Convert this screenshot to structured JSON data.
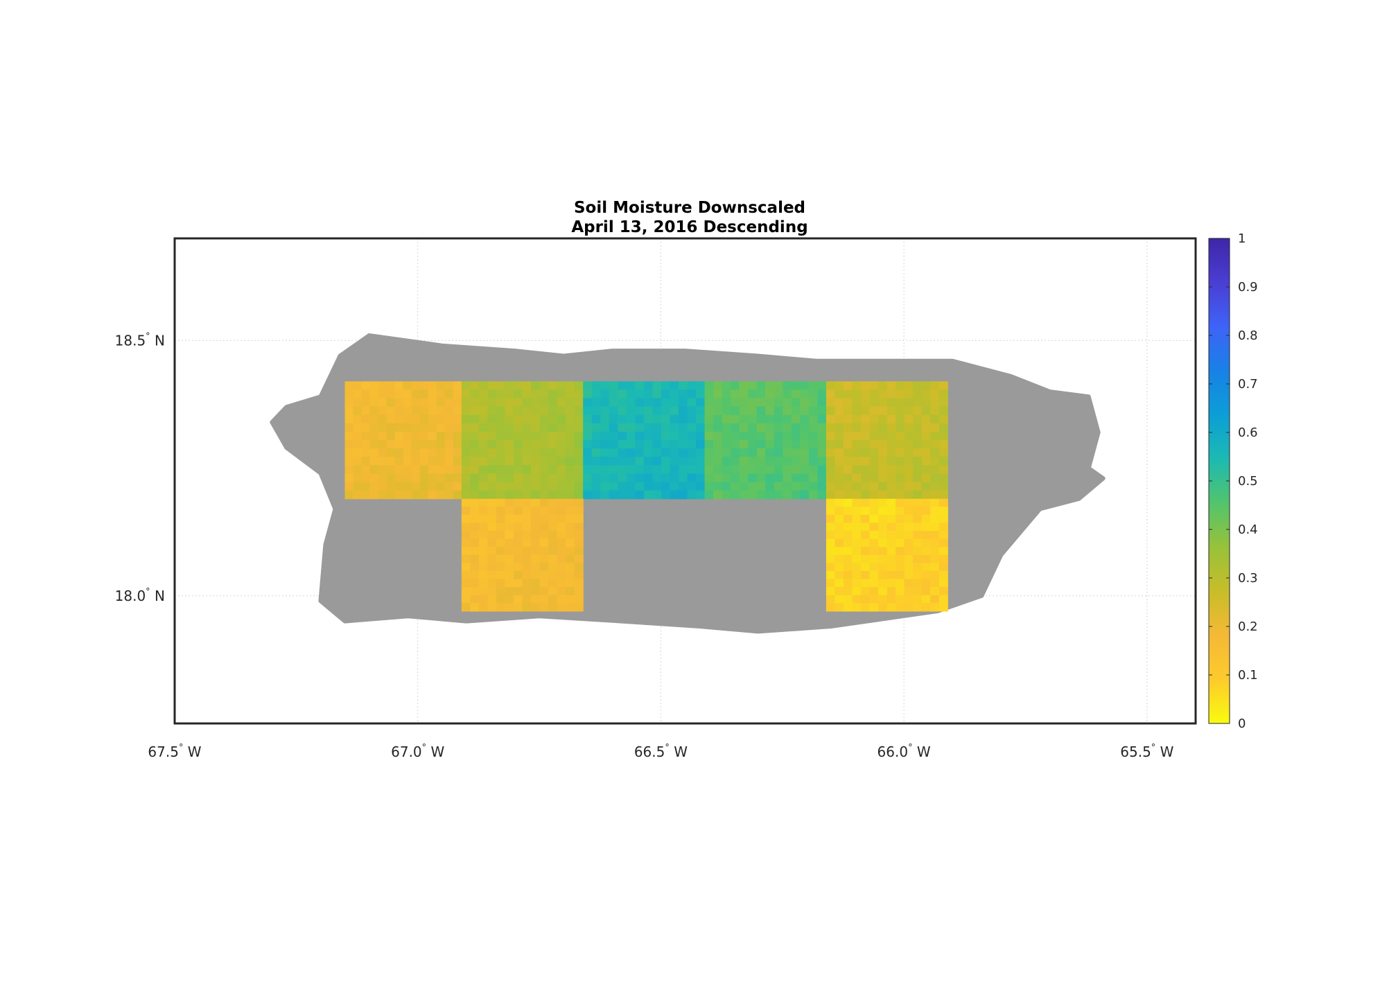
{
  "title": {
    "line1": "Soil Moisture Downscaled",
    "line2": "April 13, 2016 Descending"
  },
  "map": {
    "lon_range": [
      -67.5,
      -65.4
    ],
    "lat_range": [
      17.75,
      18.7
    ],
    "lon_ticks": [
      -67.5,
      -67.0,
      -66.5,
      -66.0,
      -65.5
    ],
    "lon_tick_labels": [
      "67.5",
      "67.0",
      "66.5",
      "66.0",
      "65.5"
    ],
    "lon_hemisphere": "W",
    "lat_ticks": [
      18.5,
      18.0
    ],
    "lat_tick_labels": [
      "18.5",
      "18.0"
    ],
    "lat_hemisphere": "N",
    "degree_symbol": "°",
    "grid": true,
    "land_color": "#9a9a9a",
    "coastline": [
      [
        -67.27,
        18.37
      ],
      [
        -67.2,
        18.39
      ],
      [
        -67.16,
        18.47
      ],
      [
        -67.1,
        18.51
      ],
      [
        -66.95,
        18.49
      ],
      [
        -66.8,
        18.48
      ],
      [
        -66.7,
        18.47
      ],
      [
        -66.6,
        18.48
      ],
      [
        -66.45,
        18.48
      ],
      [
        -66.3,
        18.47
      ],
      [
        -66.18,
        18.46
      ],
      [
        -66.05,
        18.46
      ],
      [
        -65.9,
        18.46
      ],
      [
        -65.78,
        18.43
      ],
      [
        -65.7,
        18.4
      ],
      [
        -65.62,
        18.39
      ],
      [
        -65.6,
        18.32
      ],
      [
        -65.62,
        18.25
      ],
      [
        -65.59,
        18.23
      ],
      [
        -65.64,
        18.19
      ],
      [
        -65.72,
        18.17
      ],
      [
        -65.8,
        18.08
      ],
      [
        -65.84,
        18.0
      ],
      [
        -65.93,
        17.97
      ],
      [
        -66.15,
        17.94
      ],
      [
        -66.3,
        17.93
      ],
      [
        -66.42,
        17.94
      ],
      [
        -66.58,
        17.95
      ],
      [
        -66.75,
        17.96
      ],
      [
        -66.9,
        17.95
      ],
      [
        -67.02,
        17.96
      ],
      [
        -67.15,
        17.95
      ],
      [
        -67.2,
        17.99
      ],
      [
        -67.19,
        18.1
      ],
      [
        -67.17,
        18.17
      ],
      [
        -67.2,
        18.24
      ],
      [
        -67.27,
        18.29
      ],
      [
        -67.3,
        18.34
      ]
    ],
    "tiles": [
      {
        "lon0": -67.15,
        "lon1": -66.91,
        "lat0": 18.19,
        "lat1": 18.42,
        "mean_moisture": 0.19
      },
      {
        "lon0": -66.91,
        "lon1": -66.66,
        "lat0": 18.19,
        "lat1": 18.42,
        "mean_moisture": 0.33
      },
      {
        "lon0": -66.66,
        "lon1": -66.41,
        "lat0": 18.19,
        "lat1": 18.42,
        "mean_moisture": 0.56
      },
      {
        "lon0": -66.41,
        "lon1": -66.16,
        "lat0": 18.19,
        "lat1": 18.42,
        "mean_moisture": 0.45
      },
      {
        "lon0": -66.16,
        "lon1": -65.91,
        "lat0": 18.19,
        "lat1": 18.42,
        "mean_moisture": 0.28
      },
      {
        "lon0": -66.91,
        "lon1": -66.66,
        "lat0": 17.97,
        "lat1": 18.19,
        "mean_moisture": 0.17
      },
      {
        "lon0": -66.16,
        "lon1": -65.91,
        "lat0": 17.97,
        "lat1": 18.19,
        "mean_moisture": 0.08
      }
    ]
  },
  "colorbar": {
    "min": 0,
    "max": 1,
    "tick_values": [
      0,
      0.1,
      0.2,
      0.3,
      0.4,
      0.5,
      0.6,
      0.7,
      0.8,
      0.9,
      1
    ],
    "tick_labels": [
      "0",
      "0.1",
      "0.2",
      "0.3",
      "0.4",
      "0.5",
      "0.6",
      "0.7",
      "0.8",
      "0.9",
      "1"
    ],
    "colors": [
      "#f9fb0e",
      "#fdcb2c",
      "#f4b936",
      "#c8bd29",
      "#97c23a",
      "#52c46c",
      "#1cbab2",
      "#0c9ed6",
      "#1881e6",
      "#3e63f8",
      "#4a3ed3",
      "#3e26a8"
    ]
  }
}
